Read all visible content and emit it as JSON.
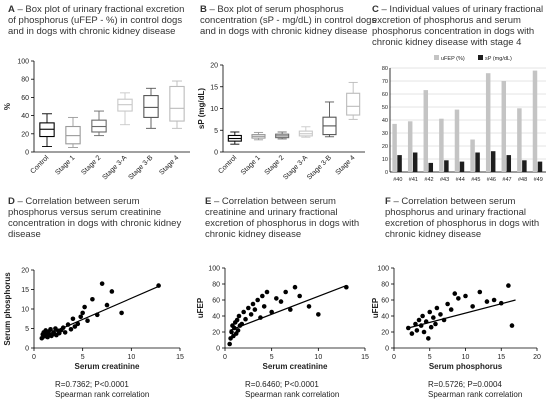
{
  "panels": {
    "A": {
      "letter": "A",
      "title": " – Box plot of urinary fractional excretion of phosphorus (uFEP - %) in control dogs and in dogs with chronic kidney disease"
    },
    "B": {
      "letter": "B",
      "title": " – Box plot of serum phosphorus concentration (sP - mg/dL) in control dogs and in dogs with chronic kidney disease"
    },
    "C": {
      "letter": "C",
      "title": " – Individual values of urinary fractional excretion of phosphorus and serum phosphorus concentration in dogs with chronic kidney disease with stage 4"
    },
    "D": {
      "letter": "D",
      "title": " – Correlation between serum phosphorus versus serum creatinine concentration in dogs with chronic kidney disease",
      "stat1": "R=0.7362; P<0.0001",
      "stat2": "Spearman rank correlation"
    },
    "E": {
      "letter": "E",
      "title": " – Correlation between serum creatinine and urinary fractional excretion of phosphorus in dogs with chronic kidney disease",
      "stat1": "R=0.6460; P<0.0001",
      "stat2": "Spearman rank correlation"
    },
    "F": {
      "letter": "F",
      "title": " – Correlation between serum phosphorus and urinary fractional excretion of phosphorus in dogs with chronic kidney disease",
      "stat1": "R=0.5726; P=0.0004",
      "stat2": "Spearman rank correlation"
    }
  },
  "chart_data": [
    {
      "id": "A",
      "type": "box",
      "ylabel": "%",
      "ylim": [
        0,
        100
      ],
      "yticks": [
        0,
        20,
        40,
        60,
        80,
        100
      ],
      "categories": [
        "Control",
        "Stage 1",
        "Stage 2",
        "Stage 3-A",
        "Stage 3-B",
        "Stage 4"
      ],
      "boxes": [
        {
          "min": 6,
          "q1": 17,
          "median": 25,
          "q3": 32,
          "max": 42,
          "color": "#000000"
        },
        {
          "min": 5,
          "q1": 9,
          "median": 18,
          "q3": 28,
          "max": 38,
          "color": "#9a9a9a"
        },
        {
          "min": 18,
          "q1": 22,
          "median": 28,
          "q3": 35,
          "max": 45,
          "color": "#6a6a6a"
        },
        {
          "min": 30,
          "q1": 45,
          "median": 52,
          "q3": 58,
          "max": 65,
          "color": "#c8c8c8"
        },
        {
          "min": 26,
          "q1": 38,
          "median": 49,
          "q3": 62,
          "max": 70,
          "color": "#555555"
        },
        {
          "min": 26,
          "q1": 34,
          "median": 48,
          "q3": 72,
          "max": 78,
          "color": "#bbbbbb"
        }
      ]
    },
    {
      "id": "B",
      "type": "box",
      "ylabel": "sP (mg/dL)",
      "ylim": [
        0,
        20
      ],
      "yticks": [
        0,
        5,
        10,
        15,
        20
      ],
      "categories": [
        "Control",
        "Stage 1",
        "Stage 2",
        "Stage 3-A",
        "Stage 3-B",
        "Stage 4"
      ],
      "boxes": [
        {
          "min": 1.8,
          "q1": 2.5,
          "median": 3.1,
          "q3": 3.8,
          "max": 4.6,
          "color": "#000000"
        },
        {
          "min": 2.8,
          "q1": 3.2,
          "median": 3.6,
          "q3": 4.0,
          "max": 4.5,
          "color": "#9a9a9a"
        },
        {
          "min": 3.0,
          "q1": 3.3,
          "median": 3.7,
          "q3": 4.1,
          "max": 4.6,
          "color": "#6a6a6a"
        },
        {
          "min": 3.4,
          "q1": 3.7,
          "median": 4.2,
          "q3": 4.8,
          "max": 5.8,
          "color": "#c8c8c8"
        },
        {
          "min": 3.5,
          "q1": 4.0,
          "median": 6.0,
          "q3": 8.0,
          "max": 11.5,
          "color": "#555555"
        },
        {
          "min": 7.5,
          "q1": 8.5,
          "median": 10.5,
          "q3": 13.5,
          "max": 16.0,
          "color": "#bbbbbb"
        }
      ]
    },
    {
      "id": "C",
      "type": "bar",
      "ylim": [
        0,
        80
      ],
      "yticks": [
        0,
        10,
        20,
        30,
        40,
        50,
        60,
        70,
        80
      ],
      "categories": [
        "#40",
        "#41",
        "#42",
        "#43",
        "#44",
        "#45",
        "#46",
        "#47",
        "#48",
        "#49"
      ],
      "legend_position": "top",
      "series": [
        {
          "name": "uFEP (%)",
          "color": "#c4c4c4",
          "values": [
            37,
            39,
            63,
            41,
            48,
            25,
            76,
            70,
            49,
            78
          ]
        },
        {
          "name": "sP (mg/dL)",
          "color": "#1e1e1e",
          "values": [
            13,
            15,
            7,
            9,
            8,
            15,
            16,
            13,
            9,
            8
          ]
        }
      ]
    },
    {
      "id": "D",
      "type": "scatter",
      "xlabel": "Serum creatinine",
      "ylabel": "Serum phosphorus",
      "xlim": [
        0,
        15
      ],
      "ylim": [
        0,
        20
      ],
      "xticks": [
        0,
        5,
        10,
        15
      ],
      "yticks": [
        0,
        5,
        10,
        15,
        20
      ],
      "points": [
        [
          0.8,
          2.5
        ],
        [
          0.9,
          3.5
        ],
        [
          1.0,
          4.0
        ],
        [
          1.1,
          3.0
        ],
        [
          1.2,
          4.5
        ],
        [
          1.3,
          3.8
        ],
        [
          1.4,
          2.8
        ],
        [
          1.5,
          4.2
        ],
        [
          1.6,
          3.4
        ],
        [
          1.7,
          4.8
        ],
        [
          1.8,
          3.1
        ],
        [
          2.0,
          4.0
        ],
        [
          2.1,
          3.6
        ],
        [
          2.2,
          5.0
        ],
        [
          2.3,
          3.3
        ],
        [
          2.5,
          4.4
        ],
        [
          2.6,
          3.8
        ],
        [
          2.8,
          4.6
        ],
        [
          3.0,
          5.2
        ],
        [
          3.2,
          4.0
        ],
        [
          3.5,
          6.0
        ],
        [
          3.8,
          4.8
        ],
        [
          4.0,
          7.5
        ],
        [
          4.2,
          5.5
        ],
        [
          4.5,
          6.2
        ],
        [
          4.8,
          8.0
        ],
        [
          5.0,
          9.0
        ],
        [
          5.2,
          10.5
        ],
        [
          5.5,
          7.0
        ],
        [
          6.0,
          12.5
        ],
        [
          6.5,
          8.5
        ],
        [
          7.0,
          16.5
        ],
        [
          7.5,
          11.0
        ],
        [
          8.0,
          14.5
        ],
        [
          9.0,
          9.0
        ],
        [
          12.8,
          16.0
        ]
      ],
      "trend": [
        [
          1.0,
          3.0
        ],
        [
          13.0,
          16.0
        ]
      ]
    },
    {
      "id": "E",
      "type": "scatter",
      "xlabel": "Serum creatinine",
      "ylabel": "uFEP",
      "xlim": [
        0,
        15
      ],
      "ylim": [
        0,
        100
      ],
      "xticks": [
        0,
        5,
        10,
        15
      ],
      "yticks": [
        0,
        20,
        40,
        60,
        80,
        100
      ],
      "points": [
        [
          0.5,
          5
        ],
        [
          0.6,
          12
        ],
        [
          0.7,
          20
        ],
        [
          0.8,
          28
        ],
        [
          0.9,
          15
        ],
        [
          1.0,
          25
        ],
        [
          1.1,
          32
        ],
        [
          1.2,
          18
        ],
        [
          1.3,
          35
        ],
        [
          1.4,
          22
        ],
        [
          1.5,
          40
        ],
        [
          1.6,
          28
        ],
        [
          1.8,
          30
        ],
        [
          2.0,
          45
        ],
        [
          2.2,
          36
        ],
        [
          2.5,
          50
        ],
        [
          2.8,
          42
        ],
        [
          3.0,
          55
        ],
        [
          3.2,
          48
        ],
        [
          3.5,
          60
        ],
        [
          3.8,
          38
        ],
        [
          4.0,
          65
        ],
        [
          4.2,
          52
        ],
        [
          4.5,
          70
        ],
        [
          5.0,
          45
        ],
        [
          5.5,
          62
        ],
        [
          6.0,
          58
        ],
        [
          6.5,
          70
        ],
        [
          7.0,
          48
        ],
        [
          7.5,
          76
        ],
        [
          8.0,
          65
        ],
        [
          9.0,
          52
        ],
        [
          10.0,
          42
        ],
        [
          13.0,
          76
        ]
      ],
      "trend": [
        [
          0.5,
          22
        ],
        [
          13.0,
          78
        ]
      ]
    },
    {
      "id": "F",
      "type": "scatter",
      "xlabel": "Serum phosphorus",
      "ylabel": "uFEP",
      "xlim": [
        0,
        20
      ],
      "ylim": [
        0,
        100
      ],
      "xticks": [
        0,
        5,
        10,
        15,
        20
      ],
      "yticks": [
        0,
        20,
        40,
        60,
        80,
        100
      ],
      "points": [
        [
          2.0,
          25
        ],
        [
          2.5,
          18
        ],
        [
          3.0,
          30
        ],
        [
          3.2,
          22
        ],
        [
          3.5,
          35
        ],
        [
          3.8,
          28
        ],
        [
          4.0,
          40
        ],
        [
          4.2,
          20
        ],
        [
          4.5,
          33
        ],
        [
          4.8,
          12
        ],
        [
          5.0,
          45
        ],
        [
          5.2,
          26
        ],
        [
          5.5,
          38
        ],
        [
          5.8,
          30
        ],
        [
          6.0,
          50
        ],
        [
          6.5,
          42
        ],
        [
          7.0,
          35
        ],
        [
          7.5,
          55
        ],
        [
          8.0,
          48
        ],
        [
          8.5,
          68
        ],
        [
          9.0,
          62
        ],
        [
          10.0,
          65
        ],
        [
          11.0,
          52
        ],
        [
          12.0,
          70
        ],
        [
          13.0,
          58
        ],
        [
          14.0,
          60
        ],
        [
          15.0,
          56
        ],
        [
          16.0,
          78
        ],
        [
          16.5,
          28
        ]
      ],
      "trend": [
        [
          2.0,
          25
        ],
        [
          17.0,
          60
        ]
      ]
    }
  ]
}
